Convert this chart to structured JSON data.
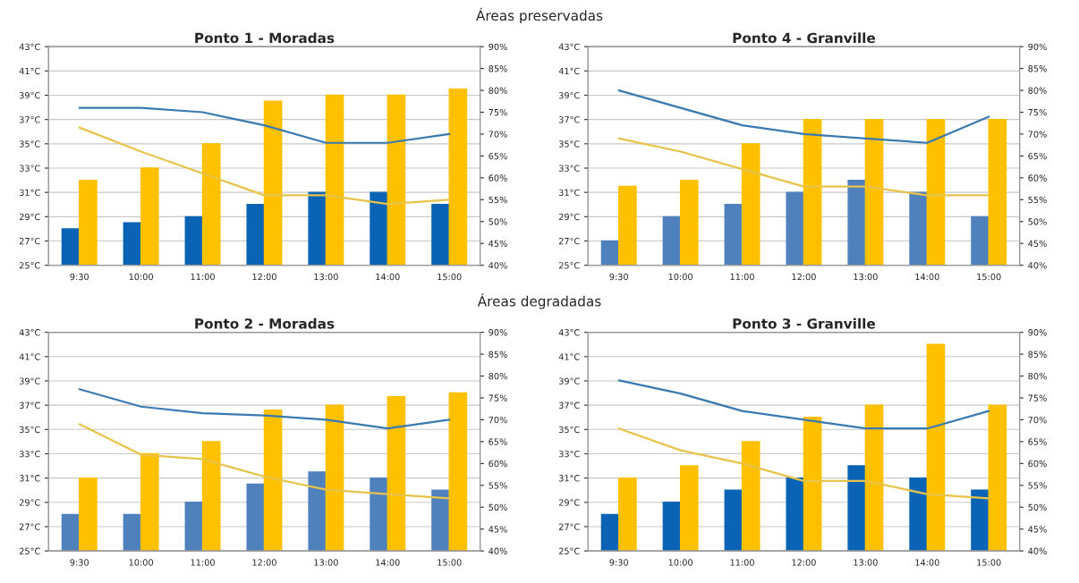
{
  "chart_data": [
    {
      "type": "bar",
      "title": "Ponto 1 - Moradas",
      "annotations": [
        "Áreas preservadas"
      ],
      "categories": [
        "9:30",
        "10:00",
        "11:00",
        "12:00",
        "13:00",
        "14:00",
        "15:00"
      ],
      "series": [
        {
          "color": "#0a63b4",
          "values": [
            28,
            28.5,
            29,
            30,
            31,
            31,
            30
          ]
        },
        {
          "color": "#ffc000",
          "values": [
            32,
            33,
            35,
            38.5,
            39,
            39,
            39.5
          ]
        },
        {
          "type": "line",
          "axis": "y2",
          "color": "#3a7ab0",
          "values": [
            76,
            76,
            75,
            72,
            68,
            68,
            70
          ]
        },
        {
          "type": "line",
          "axis": "y2",
          "color": "#e8c34a",
          "values": [
            71.5,
            66,
            61,
            56,
            56,
            54,
            55
          ]
        }
      ],
      "ylim": [
        25,
        43
      ],
      "yticks": [
        {
          "value": 25,
          "label": "25°C"
        },
        {
          "value": 27,
          "label": "27°C"
        },
        {
          "value": 29,
          "label": "29°C"
        },
        {
          "value": 31,
          "label": "31°C"
        },
        {
          "value": 33,
          "label": "33°C"
        },
        {
          "value": 35,
          "label": "35°C"
        },
        {
          "value": 37,
          "label": "37°C"
        },
        {
          "value": 39,
          "label": "39°C"
        },
        {
          "value": 41,
          "label": "41°C"
        },
        {
          "value": 43,
          "label": "43°C"
        }
      ],
      "y2lim": [
        40,
        90
      ],
      "y2ticks": [
        {
          "value": 40,
          "label": "40%"
        },
        {
          "value": 45,
          "label": "45%"
        },
        {
          "value": 50,
          "label": "50%"
        },
        {
          "value": 55,
          "label": "55%"
        },
        {
          "value": 60,
          "label": "60%"
        },
        {
          "value": 65,
          "label": "65%"
        },
        {
          "value": 70,
          "label": "70%"
        },
        {
          "value": 75,
          "label": "75%"
        },
        {
          "value": 80,
          "label": "80%"
        },
        {
          "value": 85,
          "label": "85%"
        },
        {
          "value": 90,
          "label": "90%"
        }
      ],
      "grid": "y",
      "marker": "none"
    },
    {
      "type": "bar",
      "title": "Ponto 4 - Granville",
      "categories": [
        "9:30",
        "10:00",
        "11:00",
        "12:00",
        "13:00",
        "14:00",
        "15:00"
      ],
      "series": [
        {
          "color": "#4f81bd",
          "values": [
            27,
            29,
            30,
            31,
            32,
            31,
            29
          ]
        },
        {
          "color": "#ffc000",
          "values": [
            31.5,
            32,
            35,
            37,
            37,
            37,
            37
          ]
        },
        {
          "type": "line",
          "axis": "y2",
          "color": "#3a7ab0",
          "values": [
            80,
            76,
            72,
            70,
            69,
            68,
            74
          ]
        },
        {
          "type": "line",
          "axis": "y2",
          "color": "#e8c34a",
          "values": [
            69,
            66,
            62,
            58,
            58,
            56,
            56
          ]
        }
      ],
      "ylim": [
        25,
        43
      ],
      "yticks": [
        {
          "value": 25,
          "label": "25°C"
        },
        {
          "value": 27,
          "label": "27°C"
        },
        {
          "value": 29,
          "label": "29°C"
        },
        {
          "value": 31,
          "label": "31°C"
        },
        {
          "value": 33,
          "label": "33°C"
        },
        {
          "value": 35,
          "label": "35°C"
        },
        {
          "value": 37,
          "label": "37°C"
        },
        {
          "value": 39,
          "label": "39°C"
        },
        {
          "value": 41,
          "label": "41°C"
        },
        {
          "value": 43,
          "label": "43°C"
        }
      ],
      "y2lim": [
        40,
        90
      ],
      "y2ticks": [
        {
          "value": 40,
          "label": "40%"
        },
        {
          "value": 45,
          "label": "45%"
        },
        {
          "value": 50,
          "label": "50%"
        },
        {
          "value": 55,
          "label": "55%"
        },
        {
          "value": 60,
          "label": "60%"
        },
        {
          "value": 65,
          "label": "65%"
        },
        {
          "value": 70,
          "label": "70%"
        },
        {
          "value": 75,
          "label": "75%"
        },
        {
          "value": 80,
          "label": "80%"
        },
        {
          "value": 85,
          "label": "85%"
        },
        {
          "value": 90,
          "label": "90%"
        }
      ],
      "grid": "y",
      "marker": "none"
    },
    {
      "type": "bar",
      "title": "Ponto 2 - Moradas",
      "annotations": [
        "Áreas degradadas"
      ],
      "categories": [
        "9:30",
        "10:00",
        "11:00",
        "12:00",
        "13:00",
        "14:00",
        "15:00"
      ],
      "series": [
        {
          "color": "#4f81bd",
          "values": [
            28,
            28,
            29,
            30.5,
            31.5,
            31,
            30
          ]
        },
        {
          "color": "#ffc000",
          "values": [
            31,
            33,
            34,
            36.6,
            37,
            37.7,
            38
          ]
        },
        {
          "type": "line",
          "axis": "y2",
          "color": "#3a7ab0",
          "values": [
            77,
            73,
            71.5,
            71,
            70,
            68,
            70
          ]
        },
        {
          "type": "line",
          "axis": "y2",
          "color": "#e8c34a",
          "values": [
            69,
            62,
            61,
            57,
            54,
            53,
            52
          ]
        }
      ],
      "ylim": [
        25,
        43
      ],
      "yticks": [
        {
          "value": 25,
          "label": "25°C"
        },
        {
          "value": 27,
          "label": "27°C"
        },
        {
          "value": 29,
          "label": "29°C"
        },
        {
          "value": 31,
          "label": "31°C"
        },
        {
          "value": 33,
          "label": "33°C"
        },
        {
          "value": 35,
          "label": "35°C"
        },
        {
          "value": 37,
          "label": "37°C"
        },
        {
          "value": 39,
          "label": "39°C"
        },
        {
          "value": 41,
          "label": "41°C"
        },
        {
          "value": 43,
          "label": "43°C"
        }
      ],
      "y2lim": [
        40,
        90
      ],
      "y2ticks": [
        {
          "value": 40,
          "label": "40%"
        },
        {
          "value": 45,
          "label": "45%"
        },
        {
          "value": 50,
          "label": "50%"
        },
        {
          "value": 55,
          "label": "55%"
        },
        {
          "value": 60,
          "label": "60%"
        },
        {
          "value": 65,
          "label": "65%"
        },
        {
          "value": 70,
          "label": "70%"
        },
        {
          "value": 75,
          "label": "75%"
        },
        {
          "value": 80,
          "label": "80%"
        },
        {
          "value": 85,
          "label": "85%"
        },
        {
          "value": 90,
          "label": "90%"
        }
      ],
      "grid": "y",
      "marker": "none"
    },
    {
      "type": "bar",
      "title": "Ponto 3 - Granville",
      "categories": [
        "9:30",
        "10:00",
        "11:00",
        "12:00",
        "13:00",
        "14:00",
        "15:00"
      ],
      "series": [
        {
          "color": "#0a63b4",
          "values": [
            28,
            29,
            30,
            31,
            32,
            31,
            30
          ]
        },
        {
          "color": "#ffc000",
          "values": [
            31,
            32,
            34,
            36,
            37,
            42,
            37
          ]
        },
        {
          "type": "line",
          "axis": "y2",
          "color": "#3a7ab0",
          "values": [
            79,
            76,
            72,
            70,
            68,
            68,
            72
          ]
        },
        {
          "type": "line",
          "axis": "y2",
          "color": "#e8c34a",
          "values": [
            68,
            63,
            60,
            56,
            56,
            53,
            52
          ]
        }
      ],
      "ylim": [
        25,
        43
      ],
      "yticks": [
        {
          "value": 25,
          "label": "25°C"
        },
        {
          "value": 27,
          "label": "27°C"
        },
        {
          "value": 29,
          "label": "29°C"
        },
        {
          "value": 31,
          "label": "31°C"
        },
        {
          "value": 33,
          "label": "33°C"
        },
        {
          "value": 35,
          "label": "35°C"
        },
        {
          "value": 37,
          "label": "37°C"
        },
        {
          "value": 39,
          "label": "39°C"
        },
        {
          "value": 41,
          "label": "41°C"
        },
        {
          "value": 43,
          "label": "43°C"
        }
      ],
      "y2lim": [
        40,
        90
      ],
      "y2ticks": [
        {
          "value": 40,
          "label": "40%"
        },
        {
          "value": 45,
          "label": "45%"
        },
        {
          "value": 50,
          "label": "50%"
        },
        {
          "value": 55,
          "label": "55%"
        },
        {
          "value": 60,
          "label": "60%"
        },
        {
          "value": 65,
          "label": "65%"
        },
        {
          "value": 70,
          "label": "70%"
        },
        {
          "value": 75,
          "label": "75%"
        },
        {
          "value": 80,
          "label": "80%"
        },
        {
          "value": 85,
          "label": "85%"
        },
        {
          "value": 90,
          "label": "90%"
        }
      ],
      "grid": "y",
      "marker": "none"
    }
  ]
}
